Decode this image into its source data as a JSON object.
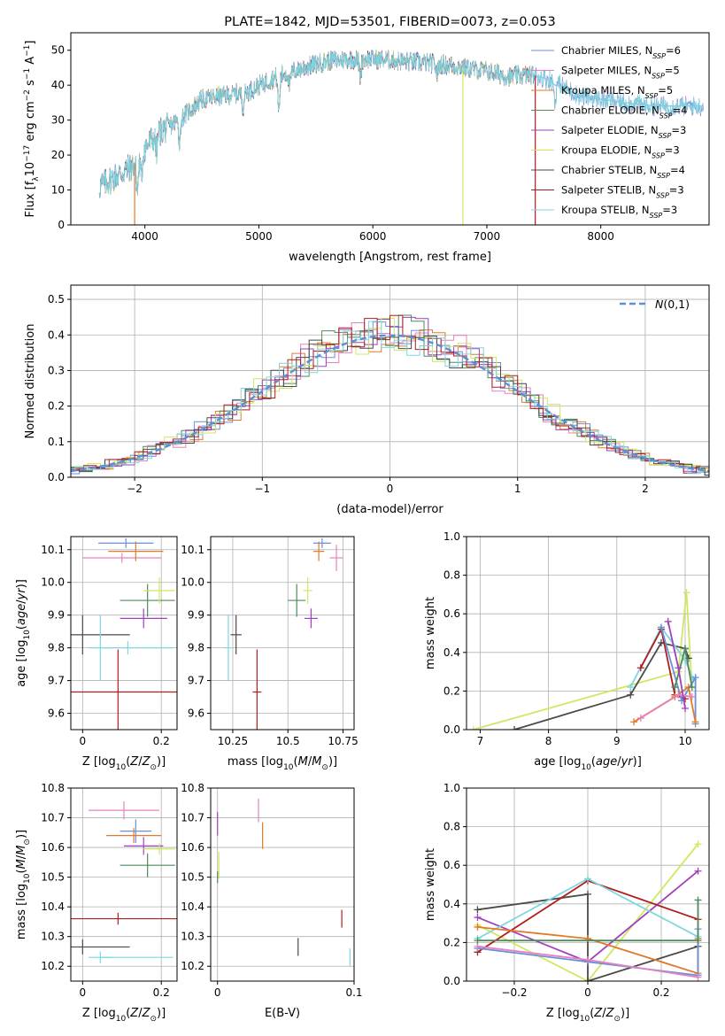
{
  "colors": {
    "chabrier_miles": "#6a8fd8",
    "salpeter_miles": "#e582c2",
    "kroupa_miles": "#e07b2a",
    "chabrier_elodie": "#4f8a5b",
    "salpeter_elodie": "#a23fbd",
    "kroupa_elodie": "#cfe861",
    "chabrier_stelib": "#4a4a4a",
    "salpeter_stelib": "#b01d1d",
    "kroupa_stelib": "#7fd6e0",
    "gaussian": "#5b8fd8"
  },
  "chart_data": [
    {
      "id": "spectrum",
      "type": "line",
      "title": "PLATE=1842, MJD=53501, FIBERID=0073, z=0.053",
      "xlabel": "wavelength [Angstrom, rest frame]",
      "ylabel": "Flux [f_λ10^-17 erg cm^-2 s^-1 A^-1]",
      "xlim": [
        3350,
        8950
      ],
      "ylim": [
        0,
        55
      ],
      "xticks": [
        4000,
        5000,
        6000,
        7000,
        8000
      ],
      "yticks": [
        0,
        10,
        20,
        30,
        40,
        50
      ],
      "legend_position": "right",
      "legend": [
        {
          "key": "chabrier_miles",
          "label": "Chabrier MILES, N",
          "sub": "SSP",
          "n": "=6"
        },
        {
          "key": "salpeter_miles",
          "label": "Salpeter MILES, N",
          "sub": "SSP",
          "n": "=5"
        },
        {
          "key": "kroupa_miles",
          "label": "Kroupa MILES, N",
          "sub": "SSP",
          "n": "=5"
        },
        {
          "key": "chabrier_elodie",
          "label": "Chabrier ELODIE, N",
          "sub": "SSP",
          "n": "=4"
        },
        {
          "key": "salpeter_elodie",
          "label": "Salpeter ELODIE, N",
          "sub": "SSP",
          "n": "=3"
        },
        {
          "key": "kroupa_elodie",
          "label": "Kroupa ELODIE, N",
          "sub": "SSP",
          "n": "=3"
        },
        {
          "key": "chabrier_stelib",
          "label": "Chabrier STELIB, N",
          "sub": "SSP",
          "n": "=4"
        },
        {
          "key": "salpeter_stelib",
          "label": "Salpeter STELIB, N",
          "sub": "SSP",
          "n": "=3"
        },
        {
          "key": "kroupa_stelib",
          "label": "Kroupa STELIB, N",
          "sub": "SSP",
          "n": "=3"
        }
      ],
      "continuum": [
        [
          3600,
          11
        ],
        [
          3700,
          13
        ],
        [
          3800,
          15
        ],
        [
          3900,
          17
        ],
        [
          4000,
          22
        ],
        [
          4100,
          26
        ],
        [
          4200,
          28
        ],
        [
          4300,
          30
        ],
        [
          4400,
          33
        ],
        [
          4500,
          36
        ],
        [
          4700,
          37
        ],
        [
          4900,
          38
        ],
        [
          5000,
          40
        ],
        [
          5200,
          43
        ],
        [
          5400,
          45
        ],
        [
          5600,
          47
        ],
        [
          5800,
          47.5
        ],
        [
          6000,
          47.5
        ],
        [
          6200,
          47
        ],
        [
          6400,
          46.5
        ],
        [
          6600,
          46
        ],
        [
          6800,
          45
        ],
        [
          7000,
          44
        ],
        [
          7200,
          42.5
        ],
        [
          7400,
          43
        ],
        [
          7600,
          41
        ],
        [
          7800,
          37
        ],
        [
          8000,
          36
        ],
        [
          8200,
          35
        ],
        [
          8500,
          34
        ]
      ],
      "dropouts": [
        {
          "x": 3910,
          "key": "kroupa_miles"
        },
        {
          "x": 6790,
          "key": "kroupa_elodie"
        },
        {
          "x": 7425,
          "key": "salpeter_stelib"
        }
      ]
    },
    {
      "id": "residual_hist",
      "type": "histogram",
      "xlabel": "(data-model)/error",
      "ylabel": "Normed distribution",
      "xlim": [
        -2.5,
        2.5
      ],
      "ylim": [
        0,
        0.54
      ],
      "xticks": [
        -2,
        -1,
        0,
        1,
        2
      ],
      "yticks": [
        0.0,
        0.1,
        0.2,
        0.3,
        0.4,
        0.5
      ],
      "legend_position": "top-right",
      "gaussian_label": "N(0,1)",
      "bin_width": 0.1
    },
    {
      "id": "age_vs_Z",
      "type": "scatter",
      "xlabel": "Z [log10(Z/Z_sun)]",
      "ylabel": "age [log10(age/yr)]",
      "xlim": [
        -0.03,
        0.24
      ],
      "ylim": [
        9.55,
        10.14
      ],
      "xticks": [
        0.0,
        0.2
      ],
      "yticks": [
        9.6,
        9.7,
        9.8,
        9.9,
        10.0,
        10.1
      ],
      "points": [
        {
          "key": "chabrier_miles",
          "x": 0.11,
          "xerr": 0.07,
          "y": 10.12,
          "yerr": 0.015
        },
        {
          "key": "salpeter_miles",
          "x": 0.1,
          "xerr": 0.1,
          "y": 10.075,
          "yerr": 0.015
        },
        {
          "key": "kroupa_miles",
          "x": 0.135,
          "xerr": 0.07,
          "y": 10.095,
          "yerr": 0.03
        },
        {
          "key": "chabrier_elodie",
          "x": 0.165,
          "xerr": 0.07,
          "y": 9.945,
          "yerr": 0.05
        },
        {
          "key": "salpeter_elodie",
          "x": 0.155,
          "xerr": 0.06,
          "y": 9.89,
          "yerr": 0.03
        },
        {
          "key": "kroupa_elodie",
          "x": 0.195,
          "xerr": 0.04,
          "y": 9.975,
          "yerr": 0.04
        },
        {
          "key": "chabrier_stelib",
          "x": 0.0,
          "xerr": 0.12,
          "y": 9.84,
          "yerr": 0.06
        },
        {
          "key": "salpeter_stelib",
          "x": 0.09,
          "xerr": 0.15,
          "y": 9.665,
          "yerr": 0.13
        },
        {
          "key": "kroupa_stelib",
          "x": 0.045,
          "xerr": 0.03,
          "y": 9.8,
          "yerr": 0.1
        },
        {
          "key": "kroupa_stelib",
          "x": 0.115,
          "xerr": 0.0,
          "y": 9.8,
          "yerr": 0.02,
          "xspan": [
            0.045,
            0.23
          ]
        }
      ]
    },
    {
      "id": "age_vs_mass",
      "type": "scatter",
      "xlabel": "mass [log10(M/M_sun)]",
      "ylabel": "",
      "xlim": [
        10.15,
        10.8
      ],
      "ylim": [
        9.55,
        10.14
      ],
      "xticks": [
        10.25,
        10.5,
        10.75
      ],
      "yticks": [
        9.6,
        9.7,
        9.8,
        9.9,
        10.0,
        10.1
      ],
      "points": [
        {
          "key": "chabrier_miles",
          "x": 10.655,
          "xerr": 0.04,
          "y": 10.12,
          "yerr": 0.015
        },
        {
          "key": "salpeter_miles",
          "x": 10.72,
          "xerr": 0.03,
          "y": 10.075,
          "yerr": 0.04
        },
        {
          "key": "kroupa_miles",
          "x": 10.64,
          "xerr": 0.025,
          "y": 10.095,
          "yerr": 0.03
        },
        {
          "key": "chabrier_elodie",
          "x": 10.54,
          "xerr": 0.04,
          "y": 9.945,
          "yerr": 0.05
        },
        {
          "key": "salpeter_elodie",
          "x": 10.605,
          "xerr": 0.03,
          "y": 9.89,
          "yerr": 0.03
        },
        {
          "key": "kroupa_elodie",
          "x": 10.59,
          "xerr": 0.02,
          "y": 9.975,
          "yerr": 0.04
        },
        {
          "key": "chabrier_stelib",
          "x": 10.265,
          "xerr": 0.025,
          "y": 9.84,
          "yerr": 0.06
        },
        {
          "key": "salpeter_stelib",
          "x": 10.36,
          "xerr": 0.02,
          "y": 9.665,
          "yerr": 0.13
        },
        {
          "key": "kroupa_stelib",
          "x": 10.23,
          "xerr": 0.02,
          "y": 9.8,
          "yerr": 0.1
        }
      ]
    },
    {
      "id": "weight_vs_age",
      "type": "line",
      "xlabel": "age [log10(age/yr)]",
      "ylabel": "mass weight",
      "xlim": [
        6.8,
        10.35
      ],
      "ylim": [
        0,
        1.0
      ],
      "xticks": [
        7,
        8,
        9,
        10
      ],
      "yticks": [
        0.0,
        0.2,
        0.4,
        0.6,
        0.8,
        1.0
      ],
      "series": [
        {
          "key": "kroupa_elodie",
          "points": [
            [
              6.9,
              0.0
            ],
            [
              9.9,
              0.3
            ],
            [
              10.02,
              0.71
            ],
            [
              10.1,
              0.22
            ]
          ]
        },
        {
          "key": "chabrier_stelib",
          "points": [
            [
              7.5,
              0.0
            ],
            [
              9.2,
              0.18
            ],
            [
              9.65,
              0.45
            ],
            [
              10.0,
              0.42
            ],
            [
              10.05,
              0.37
            ]
          ]
        },
        {
          "key": "kroupa_stelib",
          "points": [
            [
              9.2,
              0.22
            ],
            [
              9.65,
              0.53
            ],
            [
              10.0,
              0.36
            ],
            [
              10.12,
              0.26
            ]
          ]
        },
        {
          "key": "salpeter_stelib",
          "points": [
            [
              9.35,
              0.32
            ],
            [
              9.65,
              0.52
            ],
            [
              9.85,
              0.18
            ],
            [
              10.0,
              0.16
            ]
          ]
        },
        {
          "key": "chabrier_miles",
          "points": [
            [
              9.65,
              0.53
            ],
            [
              9.95,
              0.15
            ],
            [
              10.15,
              0.27
            ],
            [
              10.15,
              0.03
            ]
          ]
        },
        {
          "key": "kroupa_miles",
          "points": [
            [
              9.25,
              0.04
            ],
            [
              9.85,
              0.17
            ],
            [
              10.05,
              0.22
            ],
            [
              10.15,
              0.04
            ]
          ]
        },
        {
          "key": "salpeter_miles",
          "points": [
            [
              9.35,
              0.06
            ],
            [
              9.9,
              0.18
            ],
            [
              10.1,
              0.17
            ]
          ]
        },
        {
          "key": "chabrier_elodie",
          "points": [
            [
              9.85,
              0.22
            ],
            [
              10.0,
              0.42
            ],
            [
              10.1,
              0.22
            ]
          ]
        },
        {
          "key": "salpeter_elodie",
          "points": [
            [
              9.75,
              0.56
            ],
            [
              9.9,
              0.32
            ],
            [
              10.0,
              0.11
            ]
          ]
        }
      ]
    },
    {
      "id": "mass_vs_Z",
      "type": "scatter",
      "xlabel": "Z [log10(Z/Z_sun)]",
      "ylabel": "mass [log10(M/M_sun)]",
      "xlim": [
        -0.03,
        0.24
      ],
      "ylim": [
        10.15,
        10.8
      ],
      "xticks": [
        0.0,
        0.2
      ],
      "yticks": [
        10.2,
        10.3,
        10.4,
        10.5,
        10.6,
        10.7,
        10.8
      ],
      "points": [
        {
          "key": "chabrier_miles",
          "x": 0.135,
          "xerr": 0.04,
          "y": 10.655,
          "yerr": 0.04
        },
        {
          "key": "salpeter_miles",
          "x": 0.105,
          "xerr": 0.09,
          "y": 10.725,
          "yerr": 0.03
        },
        {
          "key": "kroupa_miles",
          "x": 0.13,
          "xerr": 0.07,
          "y": 10.64,
          "yerr": 0.025
        },
        {
          "key": "chabrier_elodie",
          "x": 0.165,
          "xerr": 0.07,
          "y": 10.54,
          "yerr": 0.04
        },
        {
          "key": "salpeter_elodie",
          "x": 0.155,
          "xerr": 0.05,
          "y": 10.605,
          "yerr": 0.03
        },
        {
          "key": "kroupa_elodie",
          "x": 0.195,
          "xerr": 0.04,
          "y": 10.595,
          "yerr": 0.02
        },
        {
          "key": "chabrier_stelib",
          "x": 0.0,
          "xerr": 0.12,
          "y": 10.265,
          "yerr": 0.025
        },
        {
          "key": "salpeter_stelib",
          "x": 0.09,
          "xerr": 0.15,
          "y": 10.36,
          "yerr": 0.02
        },
        {
          "key": "kroupa_stelib",
          "x": 0.045,
          "xerr": 0.03,
          "y": 10.23,
          "yerr": 0.02
        },
        {
          "key": "kroupa_stelib",
          "x": 0.14,
          "xerr": 0.0,
          "y": 10.23,
          "yerr": 0.0,
          "xspan": [
            0.045,
            0.23
          ]
        }
      ]
    },
    {
      "id": "mass_vs_ebv",
      "type": "scatter",
      "xlabel": "E(B-V)",
      "ylabel": "",
      "xlim": [
        -0.005,
        0.1
      ],
      "ylim": [
        10.15,
        10.8
      ],
      "xticks": [
        0.0,
        0.1
      ],
      "yticks": [
        10.2,
        10.3,
        10.4,
        10.5,
        10.6,
        10.7,
        10.8
      ],
      "points": [
        {
          "key": "salpeter_miles",
          "x": 0.03,
          "xerr": 0.0,
          "y": 10.725,
          "yerr": 0.04
        },
        {
          "key": "kroupa_miles",
          "x": 0.033,
          "xerr": 0.0,
          "y": 10.64,
          "yerr": 0.045
        },
        {
          "key": "salpeter_elodie",
          "x": 0.0,
          "xerr": 0.0,
          "y": 10.68,
          "yerr": 0.04
        },
        {
          "key": "kroupa_elodie",
          "x": 0.001,
          "xerr": 0.0,
          "y": 10.54,
          "yerr": 0.045
        },
        {
          "key": "chabrier_elodie",
          "x": 0.0,
          "xerr": 0.0,
          "y": 10.5,
          "yerr": 0.02
        },
        {
          "key": "chabrier_stelib",
          "x": 0.059,
          "xerr": 0.0,
          "y": 10.265,
          "yerr": 0.03
        },
        {
          "key": "salpeter_stelib",
          "x": 0.091,
          "xerr": 0.0,
          "y": 10.36,
          "yerr": 0.03
        },
        {
          "key": "kroupa_stelib",
          "x": 0.097,
          "xerr": 0.0,
          "y": 10.23,
          "yerr": 0.03
        }
      ]
    },
    {
      "id": "weight_vs_Z",
      "type": "line",
      "xlabel": "Z [log10(Z/Z_sun)]",
      "ylabel": "mass weight",
      "xlim": [
        -0.33,
        0.33
      ],
      "ylim": [
        0,
        1.0
      ],
      "xticks": [
        -0.2,
        0.0,
        0.2
      ],
      "yticks": [
        0.0,
        0.2,
        0.4,
        0.6,
        0.8,
        1.0
      ],
      "series": [
        {
          "key": "kroupa_elodie",
          "points": [
            [
              -0.3,
              0.29
            ],
            [
              0.0,
              0.0
            ],
            [
              0.3,
              0.71
            ]
          ]
        },
        {
          "key": "salpeter_elodie",
          "points": [
            [
              -0.3,
              0.33
            ],
            [
              0.0,
              0.1
            ],
            [
              0.3,
              0.57
            ]
          ]
        },
        {
          "key": "chabrier_stelib",
          "points": [
            [
              -0.3,
              0.37
            ],
            [
              0.0,
              0.45
            ],
            [
              0.0,
              0.0
            ],
            [
              0.3,
              0.18
            ]
          ]
        },
        {
          "key": "salpeter_stelib",
          "points": [
            [
              -0.3,
              0.15
            ],
            [
              0.0,
              0.52
            ],
            [
              0.3,
              0.32
            ]
          ]
        },
        {
          "key": "kroupa_stelib",
          "points": [
            [
              -0.3,
              0.22
            ],
            [
              0.0,
              0.53
            ],
            [
              0.3,
              0.23
            ]
          ]
        },
        {
          "key": "kroupa_miles",
          "points": [
            [
              -0.3,
              0.28
            ],
            [
              0.0,
              0.22
            ],
            [
              0.3,
              0.04
            ],
            [
              0.3,
              0.22
            ]
          ]
        },
        {
          "key": "chabrier_miles",
          "points": [
            [
              -0.3,
              0.17
            ],
            [
              0.0,
              0.1
            ],
            [
              0.3,
              0.03
            ],
            [
              0.3,
              0.27
            ]
          ]
        },
        {
          "key": "salpeter_miles",
          "points": [
            [
              -0.3,
              0.18
            ],
            [
              0.0,
              0.11
            ],
            [
              0.3,
              0.02
            ]
          ]
        },
        {
          "key": "chabrier_elodie",
          "points": [
            [
              -0.3,
              0.21
            ],
            [
              0.3,
              0.21
            ],
            [
              0.3,
              0.42
            ]
          ]
        }
      ]
    }
  ]
}
